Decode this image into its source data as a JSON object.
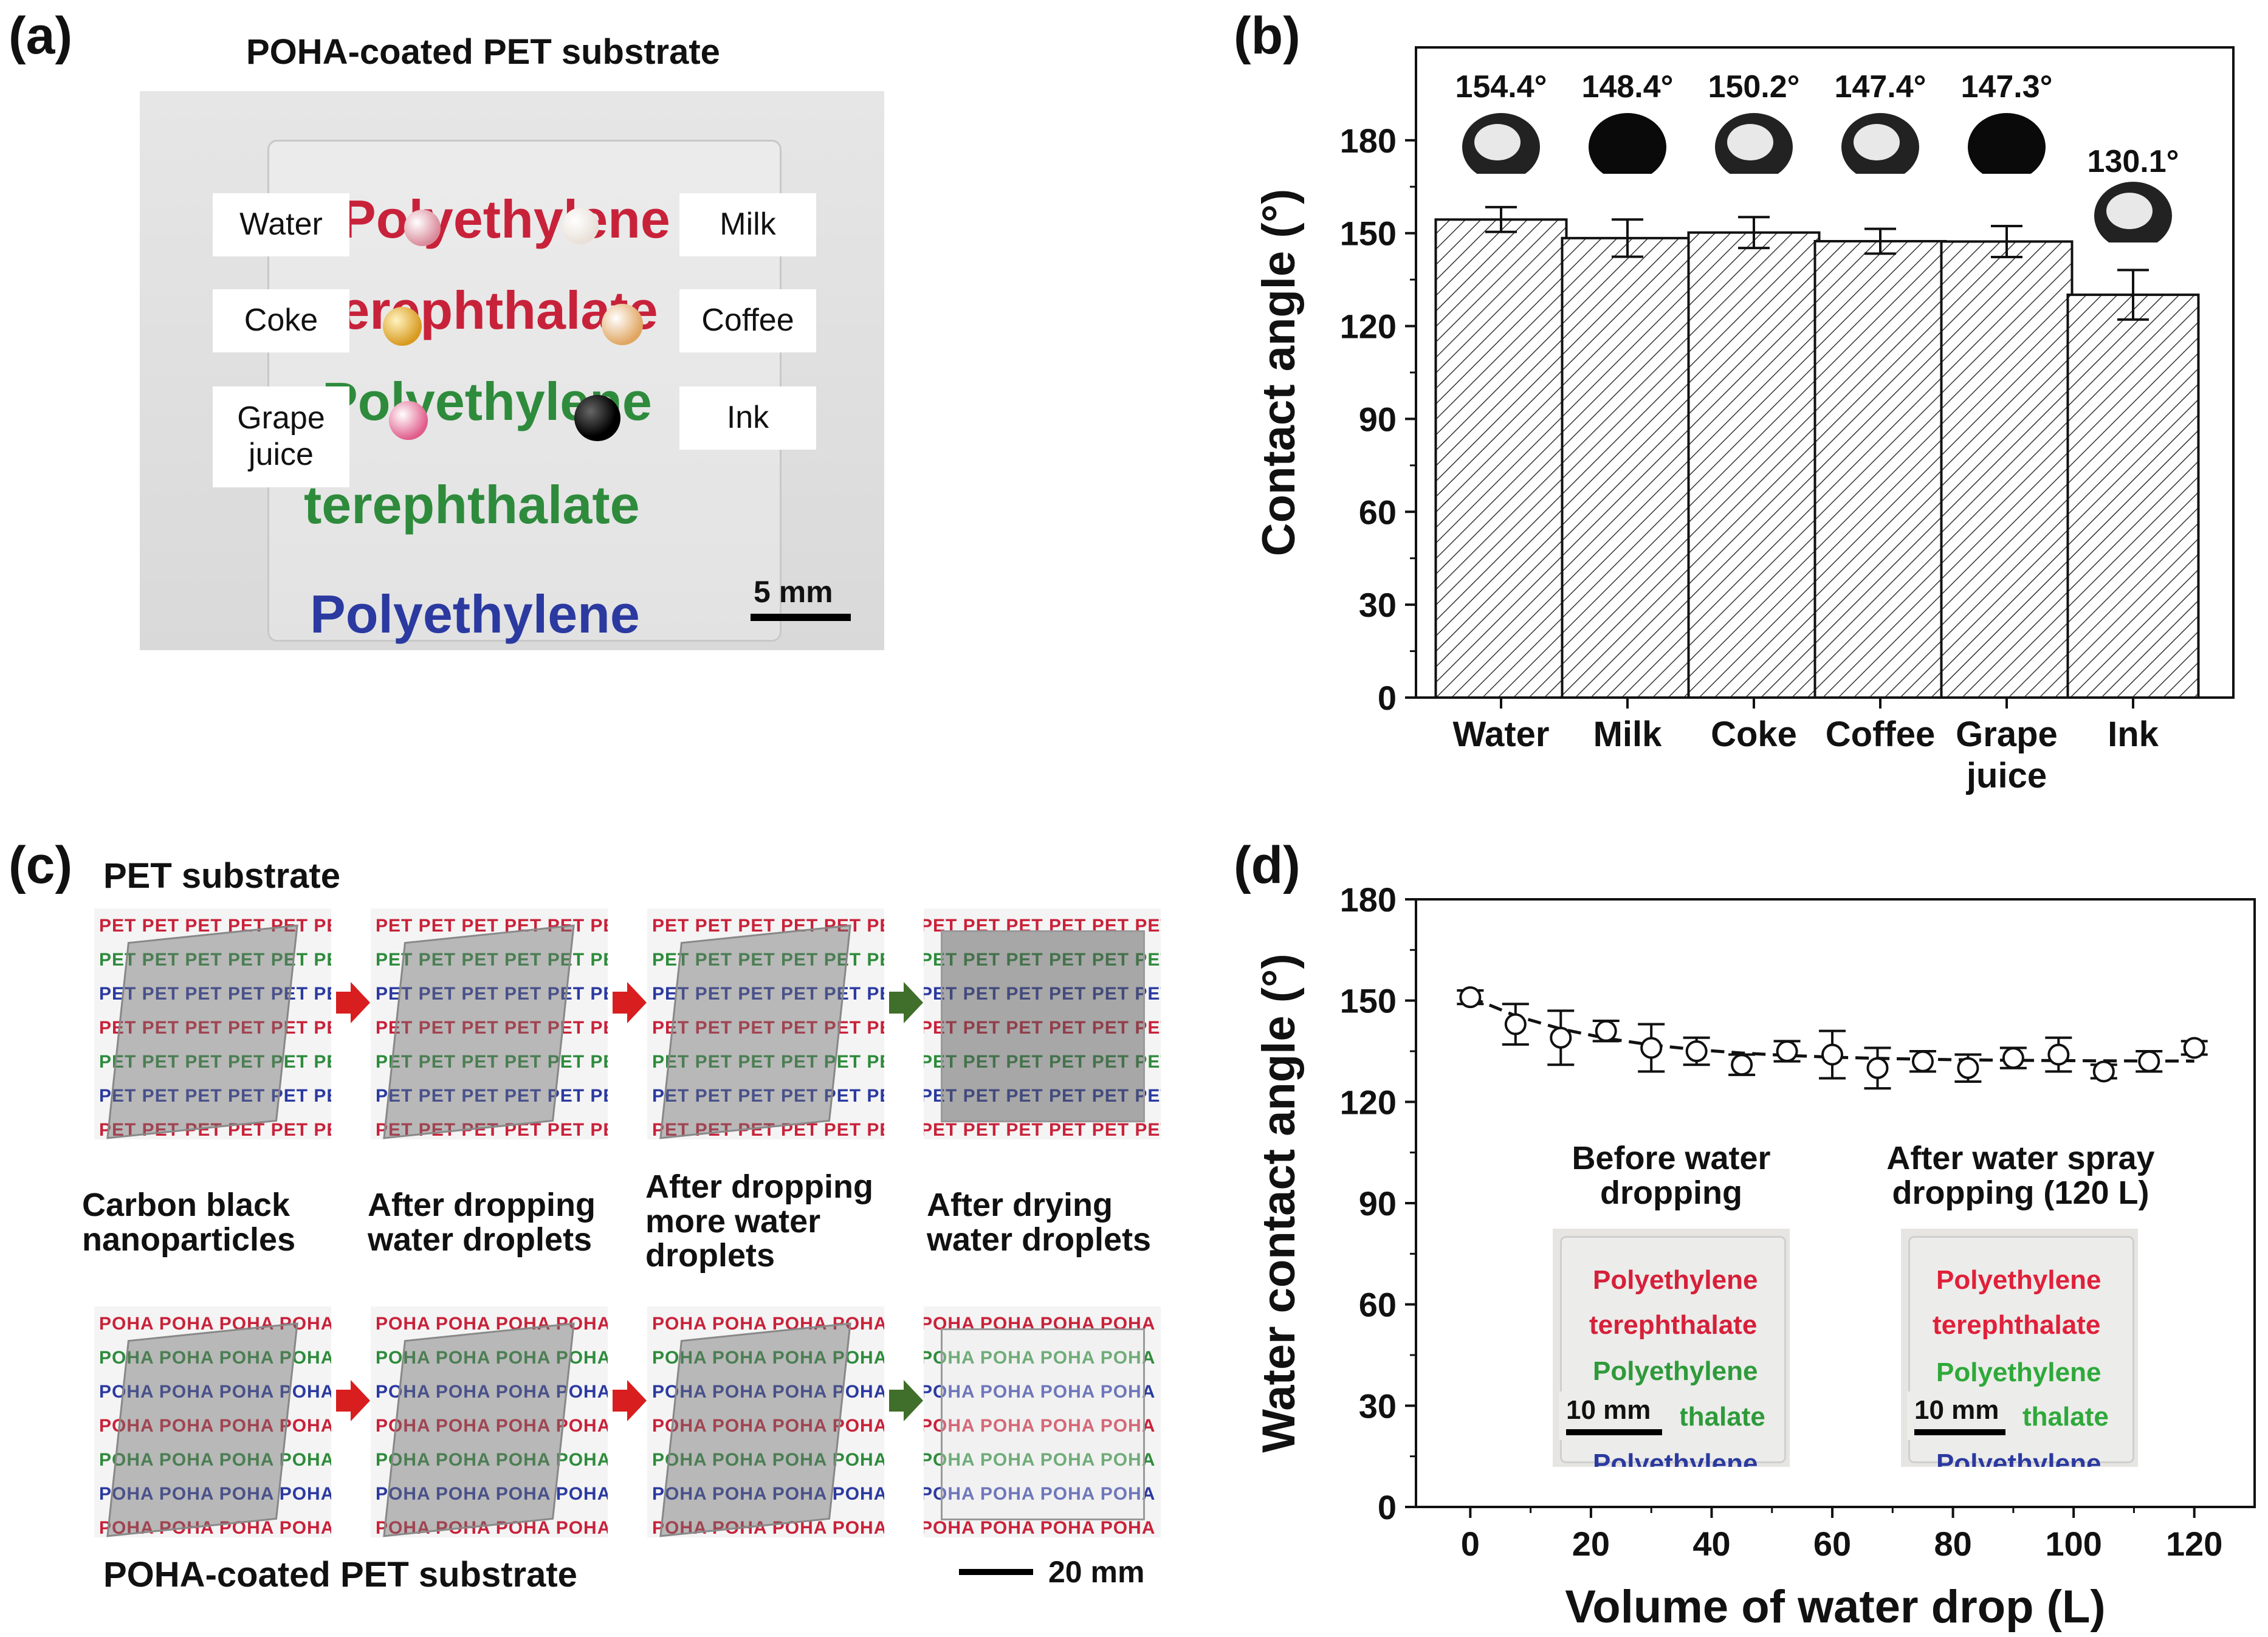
{
  "panel_a": {
    "letter": "(a)",
    "title": "POHA-coated PET substrate",
    "labels": [
      "Water",
      "Milk",
      "Coke",
      "Coffee",
      "Grape\njuice",
      "Ink"
    ],
    "background_text": [
      "Polyethylene",
      "terephthalate",
      "Polyethylene",
      "terephthalate",
      "Polyethylene"
    ],
    "scale_bar": "5 mm"
  },
  "panel_b": {
    "letter": "(b)",
    "annotations": [
      "154.4°",
      "148.4°",
      "150.2°",
      "147.4°",
      "147.3°",
      "130.1°"
    ]
  },
  "panel_c": {
    "letter": "(c)",
    "top_title": "PET substrate",
    "bottom_title": "POHA-coated PET substrate",
    "captions": [
      "Carbon black\nnanoparticles",
      "After dropping\nwater droplets",
      "After dropping\nmore water\ndroplets",
      "After drying\nwater droplets"
    ],
    "scale_bar": "20 mm",
    "pattern_top": "PET",
    "pattern_bottom": "POHA"
  },
  "panel_d": {
    "letter": "(d)",
    "inset1_title": "Before water\ndropping",
    "inset2_title": "After water spray\ndropping (120 L)",
    "inset_text": [
      "Polyethylene",
      "terephthalate",
      "Polyethylene",
      "thalate",
      "Polyethylene"
    ],
    "inset_scale": "10 mm"
  },
  "colors": {
    "red": "#c8223a",
    "green": "#2e8b3c",
    "blue": "#2b3aa0",
    "arrow_red": "#d81e1e",
    "arrow_green": "#3f6f2a"
  },
  "chart_data": [
    {
      "type": "bar",
      "title": "",
      "xlabel": "",
      "ylabel": "Contact angle (°)",
      "categories": [
        "Water",
        "Milk",
        "Coke",
        "Coffee",
        "Grape\njuice",
        "Ink"
      ],
      "values": [
        154.4,
        148.4,
        150.2,
        147.4,
        147.3,
        130.1
      ],
      "errors": [
        4,
        6,
        5,
        4,
        5,
        8
      ],
      "ylim": [
        0,
        210
      ],
      "yticks": [
        0,
        30,
        60,
        90,
        120,
        150,
        180
      ],
      "ytick_labels": [
        "0",
        "30",
        "60",
        "90",
        "120",
        "150",
        "180"
      ]
    },
    {
      "type": "scatter",
      "title": "",
      "xlabel": "Volume of water drop (L)",
      "ylabel": "Water contact angle (°)",
      "x": [
        0,
        7.5,
        15,
        22.5,
        30,
        37.5,
        45,
        52.5,
        60,
        67.5,
        75,
        82.5,
        90,
        97.5,
        105,
        112.5,
        120
      ],
      "y": [
        151,
        143,
        139,
        141,
        136,
        135,
        131,
        135,
        134,
        130,
        132,
        130,
        133,
        134,
        129,
        132,
        136
      ],
      "errors": [
        2,
        6,
        8,
        3,
        7,
        4,
        3,
        3,
        7,
        6,
        3,
        4,
        3,
        5,
        2,
        3,
        2
      ],
      "xlim": [
        -9,
        130
      ],
      "ylim": [
        0,
        180
      ],
      "xticks": [
        0,
        20,
        40,
        60,
        80,
        100,
        120
      ],
      "xtick_labels": [
        "0",
        "20",
        "40",
        "60",
        "80",
        "100",
        "120"
      ],
      "yticks": [
        0,
        30,
        60,
        90,
        120,
        150,
        180
      ],
      "ytick_labels": [
        "0",
        "30",
        "60",
        "90",
        "120",
        "150",
        "180"
      ]
    }
  ]
}
